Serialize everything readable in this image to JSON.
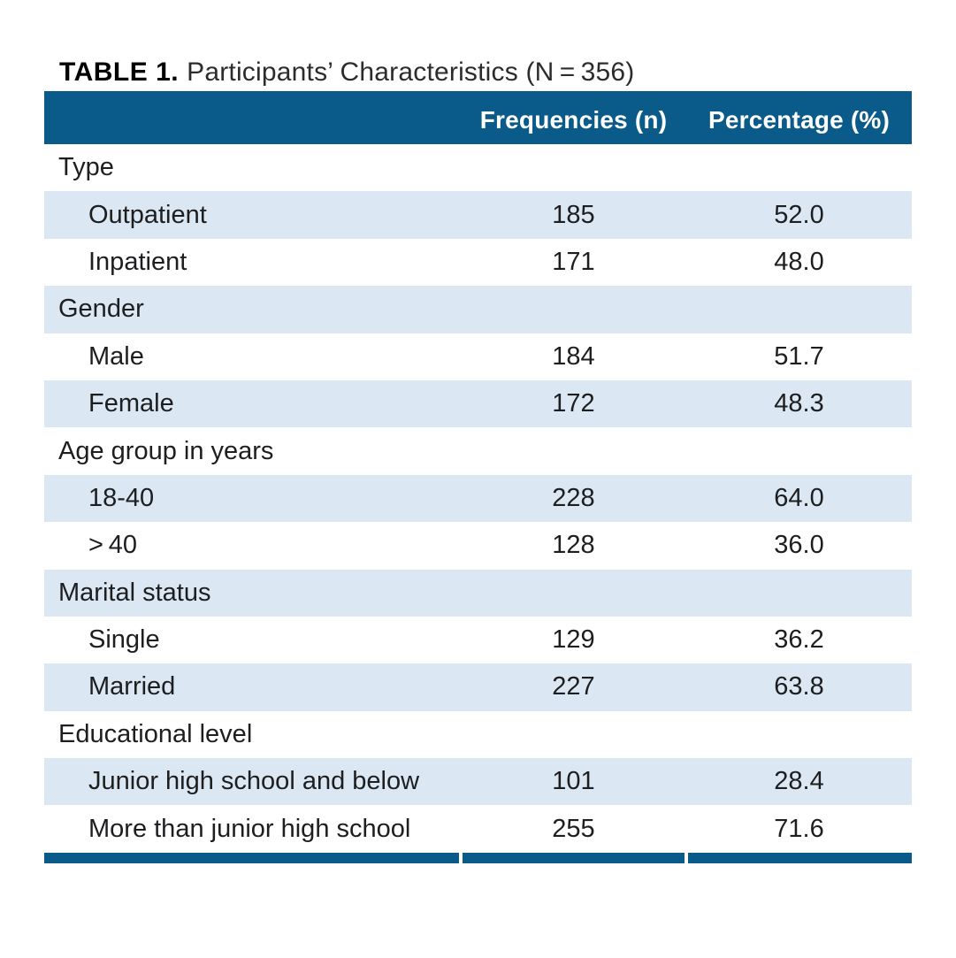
{
  "title": {
    "label": "TABLE 1.",
    "caption": "Participants’ Characteristics (N = 356)"
  },
  "table": {
    "header": {
      "row_label": "",
      "frequencies": "Frequencies (n)",
      "percentage": "Percentage (%)"
    },
    "rows": [
      {
        "label": "Type",
        "level": "category",
        "frequency": "",
        "percentage": ""
      },
      {
        "label": "Outpatient",
        "level": "item",
        "frequency": "185",
        "percentage": "52.0"
      },
      {
        "label": "Inpatient",
        "level": "item",
        "frequency": "171",
        "percentage": "48.0"
      },
      {
        "label": "Gender",
        "level": "category",
        "frequency": "",
        "percentage": ""
      },
      {
        "label": "Male",
        "level": "item",
        "frequency": "184",
        "percentage": "51.7"
      },
      {
        "label": "Female",
        "level": "item",
        "frequency": "172",
        "percentage": "48.3"
      },
      {
        "label": "Age group in years",
        "level": "category",
        "frequency": "",
        "percentage": ""
      },
      {
        "label": "18-40",
        "level": "item",
        "frequency": "228",
        "percentage": "64.0"
      },
      {
        "label": "> 40",
        "level": "item",
        "frequency": "128",
        "percentage": "36.0"
      },
      {
        "label": "Marital status",
        "level": "category",
        "frequency": "",
        "percentage": ""
      },
      {
        "label": "Single",
        "level": "item",
        "frequency": "129",
        "percentage": "36.2"
      },
      {
        "label": "Married",
        "level": "item",
        "frequency": "227",
        "percentage": "63.8"
      },
      {
        "label": "Educational level",
        "level": "category",
        "frequency": "",
        "percentage": ""
      },
      {
        "label": "Junior high school and below",
        "level": "item",
        "frequency": "101",
        "percentage": "28.4"
      },
      {
        "label": "More than junior high school",
        "level": "item",
        "frequency": "255",
        "percentage": "71.6"
      }
    ]
  },
  "colors": {
    "header_bg": "#0a5a8a",
    "header_text": "#ffffff",
    "zebra_row_bg": "#dbe7f3",
    "body_text": "#1d1e20",
    "bottom_rule": "#0a5a8a"
  }
}
